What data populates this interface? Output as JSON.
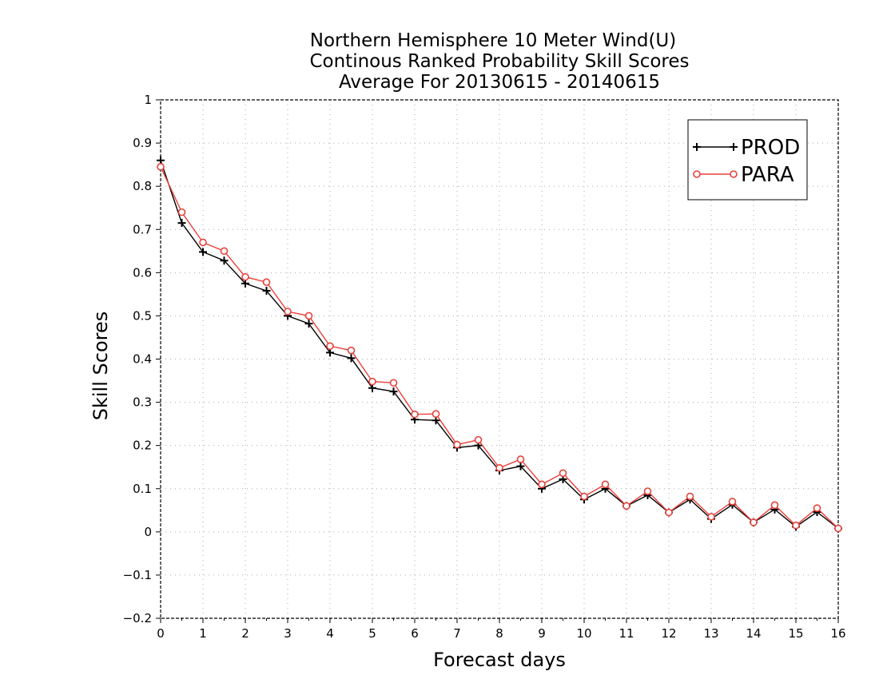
{
  "chart_data": {
    "type": "line",
    "title": [
      "Northern Hemisphere 10 Meter Wind(U)",
      "Continous Ranked Probability Skill Scores",
      "Average For 20130615 - 20140615"
    ],
    "xlabel": "Forecast days",
    "ylabel": "Skill Scores",
    "xlim": [
      0,
      16
    ],
    "ylim": [
      -0.2,
      1
    ],
    "x_ticks": [
      "0",
      "1",
      "2",
      "3",
      "4",
      "5",
      "6",
      "7",
      "8",
      "9",
      "10",
      "11",
      "12",
      "13",
      "14",
      "15",
      "16"
    ],
    "y_ticks": [
      "1",
      "0.9",
      "0.8",
      "0.7",
      "0.6",
      "0.5",
      "0.4",
      "0.3",
      "0.2",
      "0.1",
      "0",
      "−0.1",
      "−0.2"
    ],
    "x_tick_values": [
      0,
      1,
      2,
      3,
      4,
      5,
      6,
      7,
      8,
      9,
      10,
      11,
      12,
      13,
      14,
      15,
      16
    ],
    "y_tick_values": [
      1,
      0.9,
      0.8,
      0.7,
      0.6,
      0.5,
      0.4,
      0.3,
      0.2,
      0.1,
      0,
      -0.1,
      -0.2
    ],
    "grid": true,
    "legend_position": "top-right",
    "x": [
      0,
      0.5,
      1,
      1.5,
      2,
      2.5,
      3,
      3.5,
      4,
      4.5,
      5,
      5.5,
      6,
      6.5,
      7,
      7.5,
      8,
      8.5,
      9,
      9.5,
      10,
      10.5,
      11,
      11.5,
      12,
      12.5,
      13,
      13.5,
      14,
      14.5,
      15,
      15.5,
      16
    ],
    "series": [
      {
        "name": "PROD",
        "color": "#000000",
        "marker": "plus",
        "values": [
          0.86,
          0.715,
          0.648,
          0.628,
          0.575,
          0.558,
          0.5,
          0.482,
          0.415,
          0.402,
          0.333,
          0.325,
          0.26,
          0.258,
          0.195,
          0.2,
          0.142,
          0.152,
          0.1,
          0.122,
          0.075,
          0.1,
          0.06,
          0.085,
          0.045,
          0.075,
          0.03,
          0.063,
          0.022,
          0.052,
          0.012,
          0.046,
          0.008
        ]
      },
      {
        "name": "PARA",
        "color": "#e8403a",
        "marker": "circle",
        "values": [
          0.845,
          0.74,
          0.67,
          0.65,
          0.59,
          0.578,
          0.51,
          0.5,
          0.43,
          0.42,
          0.348,
          0.345,
          0.272,
          0.273,
          0.202,
          0.213,
          0.148,
          0.168,
          0.11,
          0.136,
          0.082,
          0.11,
          0.06,
          0.094,
          0.045,
          0.082,
          0.035,
          0.07,
          0.022,
          0.062,
          0.015,
          0.055,
          0.008
        ]
      }
    ]
  }
}
